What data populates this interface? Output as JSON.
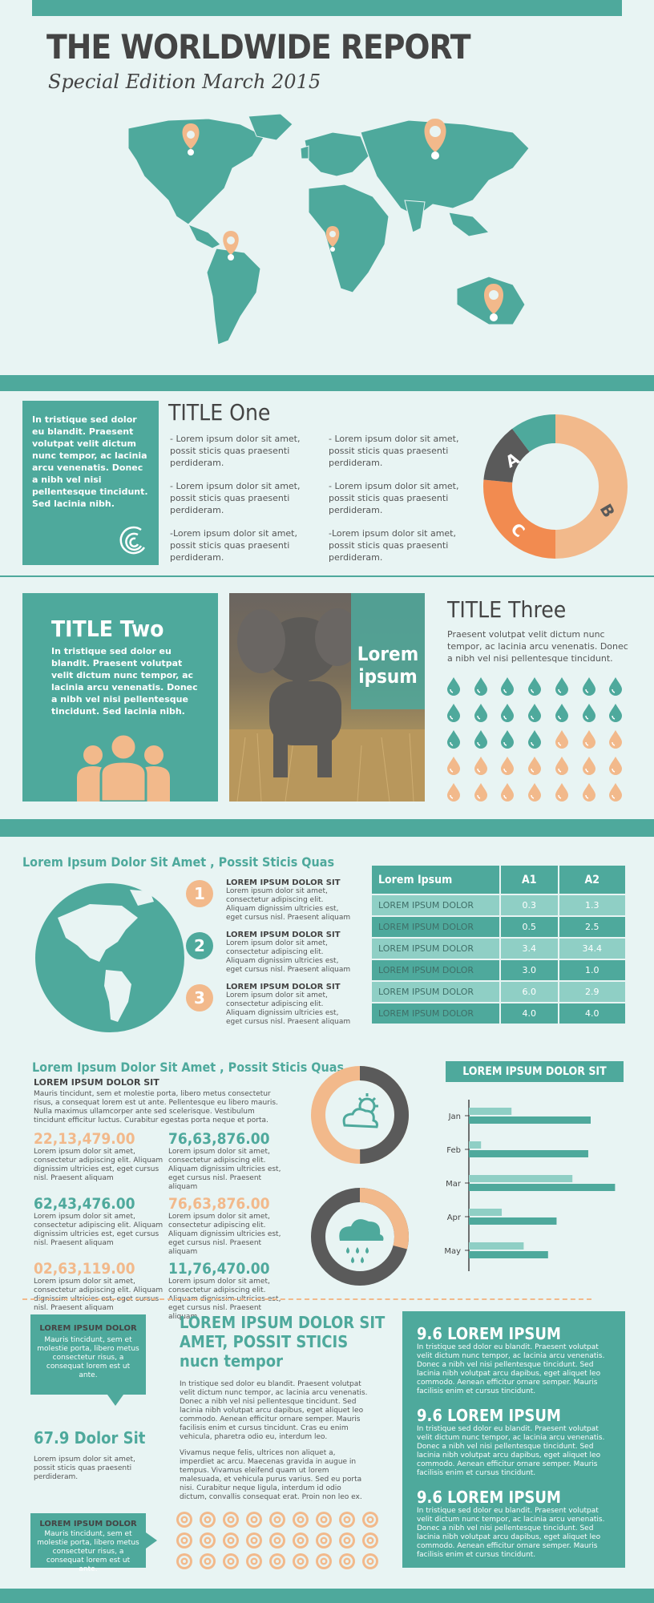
{
  "header": {
    "title": "THE WORLDWIDE REPORT",
    "subtitle": "Special Edition March 2015"
  },
  "palette": {
    "teal": "#4ea99c",
    "teal_light": "#8fcfc5",
    "peach": "#f2b98b",
    "orange": "#f28b50",
    "dark": "#5a5a5a",
    "bg": "#e8f4f3"
  },
  "section1": {
    "intro": "In tristique sed dolor eu blandit. Praesent volutpat velit dictum nunc tempor, ac lacinia arcu venenatis. Donec a nibh vel nisi pellentesque tincidunt. Sed lacinia nibh.",
    "title": "TITLE One",
    "bullets": [
      "- Lorem ipsum dolor sit amet, possit sticis quas praesenti perdideram.",
      "- Lorem ipsum dolor sit amet, possit sticis quas praesenti perdideram.",
      "- Lorem ipsum dolor sit amet, possit sticis quas praesenti perdideram.",
      "- Lorem ipsum dolor sit amet, possit sticis quas praesenti perdideram.",
      "-Lorem ipsum dolor sit amet, possit sticis quas praesenti perdideram.",
      "-Lorem ipsum dolor sit amet, possit sticis quas praesenti perdideram."
    ],
    "donut_labels": [
      "A",
      "B",
      "C"
    ]
  },
  "section2": {
    "title_two": "TITLE Two",
    "text_two": "In tristique sed dolor eu blandit. Praesent volutpat velit dictum nunc tempor, ac lacinia arcu venenatis. Donec a nibh vel nisi pellentesque tincidunt. Sed lacinia nibh.",
    "photo_label_1": "Lorem",
    "photo_label_2": "ipsum",
    "title_three": "TITLE Three",
    "text_three": "Praesent volutpat velit dictum nunc tempor, ac lacinia arcu venenatis. Donec a nibh vel nisi pellentesque tincidunt."
  },
  "section3": {
    "heading": "Lorem Ipsum Dolor Sit Amet , Possit Sticis Quas",
    "steps": [
      {
        "num": "1",
        "title": "LOREM IPSUM DOLOR SIT",
        "text": "Lorem ipsum dolor sit amet, consectetur adipiscing elit. Aliquam dignissim ultricies est, eget cursus nisl. Praesent aliquam"
      },
      {
        "num": "2",
        "title": "LOREM IPSUM DOLOR SIT",
        "text": "Lorem ipsum dolor sit amet, consectetur adipiscing elit. Aliquam dignissim ultricies est, eget cursus nisl. Praesent aliquam"
      },
      {
        "num": "3",
        "title": "LOREM IPSUM DOLOR SIT",
        "text": "Lorem ipsum dolor sit amet, consectetur adipiscing elit. Aliquam dignissim ultricies est, eget cursus nisl. Praesent aliquam"
      }
    ],
    "table": {
      "headers": [
        "Lorem Ipsum",
        "A1",
        "A2"
      ],
      "rows": [
        [
          "LOREM IPSUM DOLOR",
          "0.3",
          "1.3"
        ],
        [
          "LOREM IPSUM DOLOR",
          "0.5",
          "2.5"
        ],
        [
          "LOREM IPSUM DOLOR",
          "3.4",
          "34.4"
        ],
        [
          "LOREM IPSUM DOLOR",
          "3.0",
          "1.0"
        ],
        [
          "LOREM IPSUM DOLOR",
          "6.0",
          "2.9"
        ],
        [
          "LOREM IPSUM DOLOR",
          "4.0",
          "4.0"
        ]
      ]
    }
  },
  "section4": {
    "heading": "Lorem Ipsum Dolor Sit Amet , Possit Sticis Quas",
    "subheading": "LOREM IPSUM DOLOR SIT",
    "paragraph": "Mauris tincidunt, sem et molestie porta, libero metus consectetur risus, a consequat lorem est ut ante. Pellentesque eu libero mauris. Nulla maximus ullamcorper ante sed scelerisque. Vestibulum tincidunt efficitur luctus. Curabitur egestas porta neque et porta.",
    "stats": [
      {
        "value": "22,13,479.00",
        "text": "Lorem ipsum dolor sit amet, consectetur adipiscing elit. Aliquam dignissim ultricies est, eget cursus nisl. Praesent aliquam"
      },
      {
        "value": "76,63,876.00",
        "text": "Lorem ipsum dolor sit amet, consectetur adipiscing elit. Aliquam dignissim ultricies est, eget cursus nisl. Praesent aliquam"
      },
      {
        "value": "62,43,476.00",
        "text": "Lorem ipsum dolor sit amet, consectetur adipiscing elit. Aliquam dignissim ultricies est, eget cursus nisl. Praesent aliquam"
      },
      {
        "value": "76,63,876.00",
        "text": "Lorem ipsum dolor sit amet, consectetur adipiscing elit. Aliquam dignissim ultricies est, eget cursus nisl. Praesent aliquam"
      },
      {
        "value": "02,63,119.00",
        "text": "Lorem ipsum dolor sit amet, consectetur adipiscing elit. Aliquam dignissim ultricies est, eget cursus nisl. Praesent aliquam"
      },
      {
        "value": "11,76,470.00",
        "text": "Lorem ipsum dolor sit amet, consectetur adipiscing elit. Aliquam dignissim ultricies est, eget cursus nisl. Praesent aliquam"
      }
    ],
    "bar_title": "LOREM IPSUM DOLOR SIT"
  },
  "chart_data": {
    "type": "bar",
    "orientation": "horizontal",
    "title": "LOREM IPSUM DOLOR SIT",
    "categories": [
      "Jan",
      "Feb",
      "Mar",
      "Apr",
      "May"
    ],
    "series": [
      {
        "name": "light",
        "values": [
          35,
          10,
          85,
          27,
          45
        ]
      },
      {
        "name": "dark",
        "values": [
          100,
          98,
          120,
          72,
          65
        ]
      }
    ],
    "xlim": [
      0,
      125
    ]
  },
  "section5": {
    "callout1_title": "LOREM IPSUM DOLOR",
    "callout1_text": "Mauris tincidunt, sem et molestie porta, libero metus consectetur risus, a consequat lorem est ut ante.",
    "stat_title": "67.9 Dolor Sit",
    "stat_text": "Lorem ipsum dolor sit amet, possit sticis quas praesenti perdideram.",
    "callout2_title": "LOREM IPSUM DOLOR",
    "callout2_text": "Mauris tincidunt, sem et molestie porta, libero metus consectetur risus, a consequat lorem est ut ante.",
    "mid_title_1": "LOREM IPSUM DOLOR SIT",
    "mid_title_2": "AMET, POSSIT STICIS",
    "mid_title_3": "nucn tempor",
    "mid_para1": "In tristique sed dolor eu blandit. Praesent volutpat velit dictum nunc tempor, ac lacinia arcu venenatis. Donec a nibh vel nisi pellentesque tincidunt. Sed lacinia nibh volutpat arcu dapibus, eget aliquet leo commodo. Aenean efficitur ornare semper. Mauris facilisis enim et cursus tincidunt. Cras eu enim vehicula, pharetra odio eu, interdum leo.",
    "mid_para2": "Vivamus neque felis, ultrices non aliquet a, imperdiet ac arcu. Maecenas gravida in augue in tempus. Vivamus eleifend quam ut lorem malesuada, et vehicula purus varius. Sed eu porta nisi. Curabitur neque ligula, interdum id odio dictum, convallis consequat erat. Proin non leo ex.",
    "right_blocks": [
      {
        "title": "9.6 LOREM IPSUM",
        "text": "In tristique sed dolor eu blandit. Praesent volutpat velit dictum nunc tempor, ac lacinia arcu venenatis. Donec a nibh vel nisi pellentesque tincidunt. Sed lacinia nibh volutpat arcu dapibus, eget aliquet leo commodo. Aenean efficitur ornare semper. Mauris facilisis enim et cursus tincidunt."
      },
      {
        "title": "9.6 LOREM IPSUM",
        "text": "In tristique sed dolor eu blandit. Praesent volutpat velit dictum nunc tempor, ac lacinia arcu venenatis. Donec a nibh vel nisi pellentesque tincidunt. Sed lacinia nibh volutpat arcu dapibus, eget aliquet leo commodo. Aenean efficitur ornare semper. Mauris facilisis enim et cursus tincidunt."
      },
      {
        "title": "9.6 LOREM IPSUM",
        "text": "In tristique sed dolor eu blandit. Praesent volutpat velit dictum nunc tempor, ac lacinia arcu venenatis. Donec a nibh vel nisi pellentesque tincidunt. Sed lacinia nibh volutpat arcu dapibus, eget aliquet leo commodo. Aenean efficitur ornare semper. Mauris facilisis enim et cursus tincidunt."
      }
    ]
  }
}
